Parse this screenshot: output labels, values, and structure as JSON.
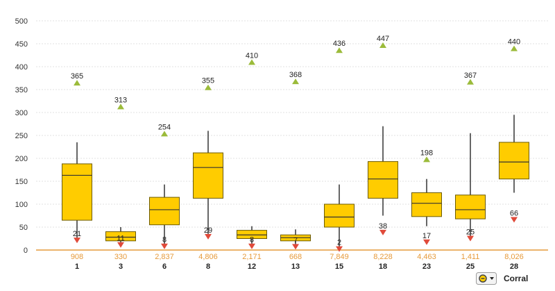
{
  "chart_data": {
    "type": "boxplot",
    "y_ticks": [
      "500",
      "450",
      "400",
      "350",
      "300",
      "250",
      "200",
      "150",
      "100",
      "50",
      "0"
    ],
    "ylim": [
      0,
      500
    ],
    "grid": true,
    "box_color": "#ffcc00",
    "whisker_color": "#333333",
    "max_marker_color": "#9bbb3a",
    "min_marker_color": "#e04a3a",
    "count_color": "#e69a3a",
    "categories": [
      "1",
      "3",
      "6",
      "8",
      "12",
      "13",
      "15",
      "18",
      "23",
      "25",
      "28"
    ],
    "counts": [
      "908",
      "330",
      "2,837",
      "4,806",
      "2,171",
      "668",
      "7,849",
      "8,228",
      "4,463",
      "1,411",
      "8,026"
    ],
    "boxes": [
      {
        "category": "1",
        "whisker_low": 25,
        "q1": 65,
        "median": 163,
        "q3": 188,
        "whisker_high": 235,
        "max": 365,
        "max_label": "365",
        "min": 21,
        "min_label": "21"
      },
      {
        "category": "3",
        "whisker_low": 15,
        "q1": 20,
        "median": 28,
        "q3": 40,
        "whisker_high": 50,
        "max": 313,
        "max_label": "313",
        "min": 11,
        "min_label": "11"
      },
      {
        "category": "6",
        "whisker_low": 12,
        "q1": 55,
        "median": 88,
        "q3": 115,
        "whisker_high": 143,
        "max": 254,
        "max_label": "254",
        "min": 8,
        "min_label": "8"
      },
      {
        "category": "8",
        "whisker_low": 35,
        "q1": 113,
        "median": 180,
        "q3": 212,
        "whisker_high": 260,
        "max": 355,
        "max_label": "355",
        "min": 29,
        "min_label": "29"
      },
      {
        "category": "12",
        "whisker_low": 12,
        "q1": 25,
        "median": 33,
        "q3": 43,
        "whisker_high": 52,
        "max": 410,
        "max_label": "410",
        "min": 8,
        "min_label": "8"
      },
      {
        "category": "13",
        "whisker_low": 10,
        "q1": 20,
        "median": 27,
        "q3": 33,
        "whisker_high": 45,
        "max": 368,
        "max_label": "368",
        "min": 7,
        "min_label": "7"
      },
      {
        "category": "15",
        "whisker_low": 5,
        "q1": 50,
        "median": 72,
        "q3": 100,
        "whisker_high": 143,
        "max": 436,
        "max_label": "436",
        "min": 2,
        "min_label": "2"
      },
      {
        "category": "18",
        "whisker_low": 75,
        "q1": 113,
        "median": 155,
        "q3": 193,
        "whisker_high": 270,
        "max": 447,
        "max_label": "447",
        "min": 38,
        "min_label": "38"
      },
      {
        "category": "23",
        "whisker_low": 52,
        "q1": 73,
        "median": 102,
        "q3": 125,
        "whisker_high": 155,
        "max": 198,
        "max_label": "198",
        "min": 17,
        "min_label": "17"
      },
      {
        "category": "25",
        "whisker_low": 30,
        "q1": 68,
        "median": 88,
        "q3": 120,
        "whisker_high": 255,
        "max": 367,
        "max_label": "367",
        "min": 25,
        "min_label": "25"
      },
      {
        "category": "28",
        "whisker_low": 125,
        "q1": 155,
        "median": 192,
        "q3": 235,
        "whisker_high": 295,
        "max": 440,
        "max_label": "440",
        "min": 66,
        "min_label": "66"
      }
    ]
  },
  "legend": {
    "icon": "corral-dropdown-icon",
    "label": "Corral"
  }
}
